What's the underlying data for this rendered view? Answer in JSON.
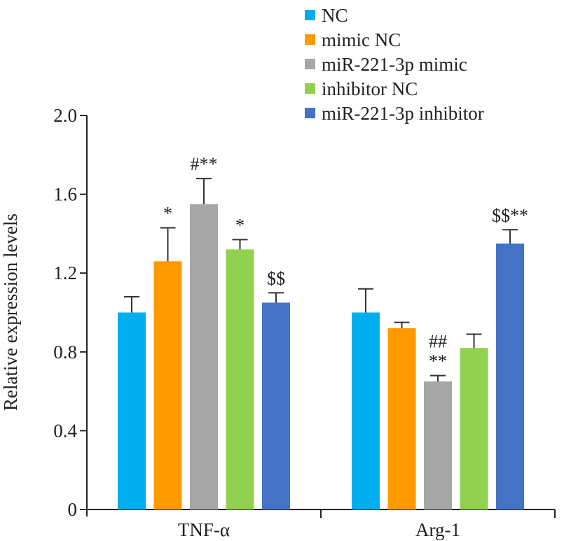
{
  "chart_data": {
    "type": "bar",
    "title": "",
    "xlabel": "",
    "ylabel": "Relative expression levels",
    "ylim": [
      0,
      2.0
    ],
    "yticks": [
      0,
      0.4,
      0.8,
      1.2,
      1.6,
      2.0
    ],
    "ytick_labels": [
      "0",
      "0.4",
      "0.8",
      "1.2",
      "1.6",
      "2.0"
    ],
    "categories": [
      "TNF-α",
      "Arg-1"
    ],
    "legend_position": "top-right",
    "grid": false,
    "series": [
      {
        "name": "NC",
        "color": "#00AEEF",
        "values": [
          1.0,
          1.0
        ],
        "errors": [
          0.08,
          0.12
        ],
        "annotations": [
          "",
          ""
        ]
      },
      {
        "name": "mimic NC",
        "color": "#FF9900",
        "values": [
          1.26,
          0.92
        ],
        "errors": [
          0.17,
          0.03
        ],
        "annotations": [
          "*",
          ""
        ]
      },
      {
        "name": "miR-221-3p mimic",
        "color": "#A6A6A6",
        "values": [
          1.55,
          0.65
        ],
        "errors": [
          0.13,
          0.03
        ],
        "annotations": [
          "#**",
          "##\n**"
        ]
      },
      {
        "name": "inhibitor NC",
        "color": "#92D050",
        "values": [
          1.32,
          0.82
        ],
        "errors": [
          0.05,
          0.07
        ],
        "annotations": [
          "*",
          ""
        ]
      },
      {
        "name": "miR-221-3p inhibitor",
        "color": "#4472C4",
        "values": [
          1.05,
          1.35
        ],
        "errors": [
          0.05,
          0.07
        ],
        "annotations": [
          "$$",
          "$$**"
        ]
      }
    ]
  }
}
